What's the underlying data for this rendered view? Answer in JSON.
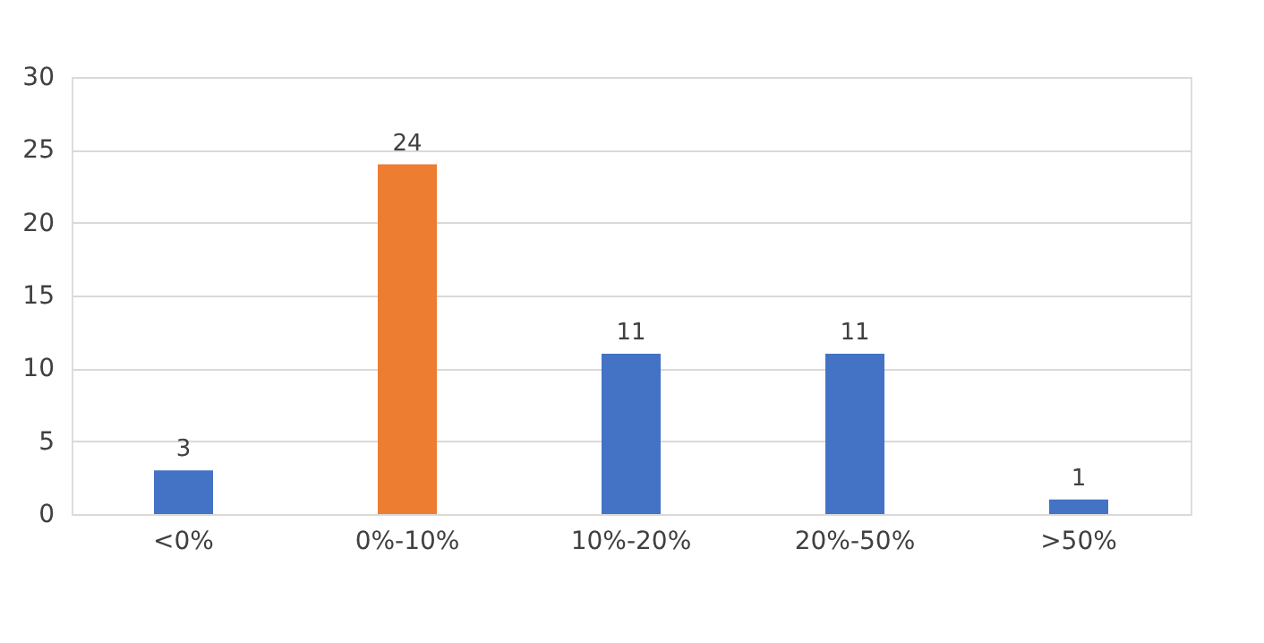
{
  "chart_data": {
    "type": "bar",
    "categories": [
      "<0%",
      "0%-10%",
      "10%-20%",
      "20%-50%",
      ">50%"
    ],
    "values": [
      3,
      24,
      11,
      11,
      1
    ],
    "colors": [
      "#4472c4",
      "#ed7d31",
      "#4472c4",
      "#4472c4",
      "#4472c4"
    ],
    "ylim": [
      0,
      30
    ],
    "yticks": [
      0,
      5,
      10,
      15,
      20,
      25,
      30
    ],
    "grid": "y",
    "data_labels": true,
    "legend": false
  }
}
